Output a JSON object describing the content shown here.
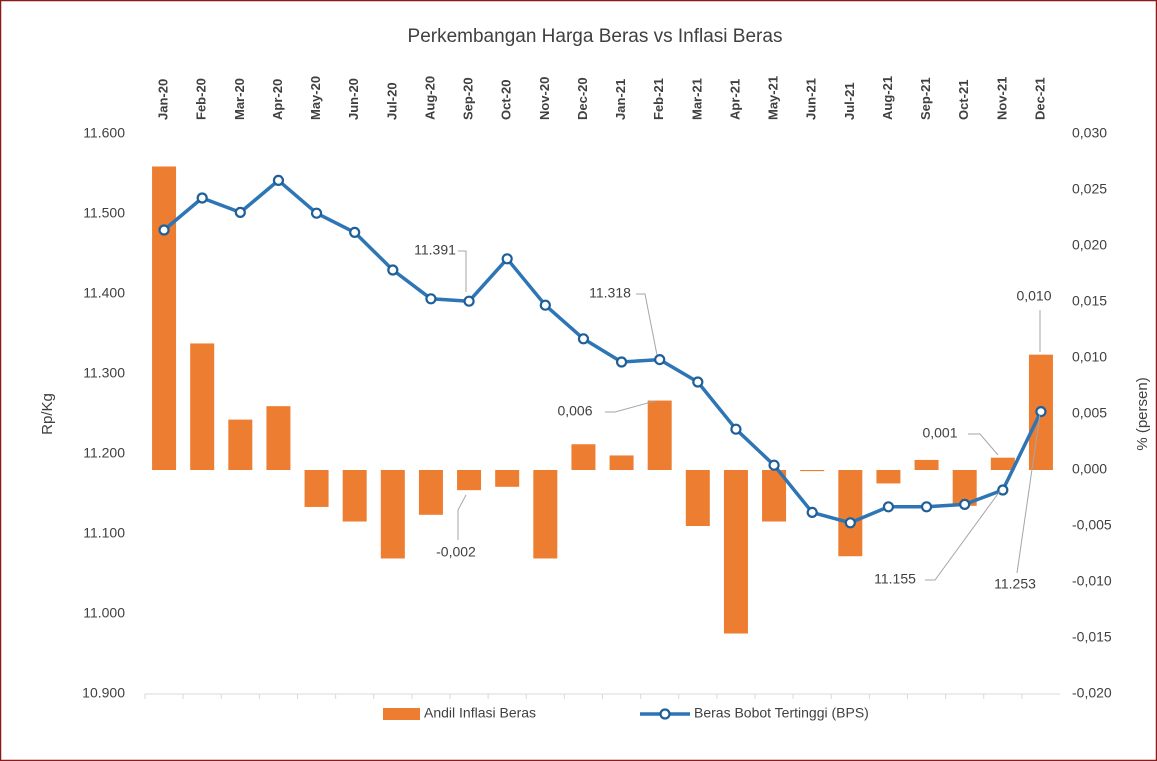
{
  "chart_data": {
    "type": "bar_line",
    "title": "Perkembangan Harga Beras vs Inflasi Beras",
    "y_label": "Rp/Kg",
    "y2_label": "% (persen)",
    "categories": [
      "Jan-20",
      "Feb-20",
      "Mar-20",
      "Apr-20",
      "May-20",
      "Jun-20",
      "Jul-20",
      "Aug-20",
      "Sep-20",
      "Oct-20",
      "Nov-20",
      "Dec-20",
      "Jan-21",
      "Feb-21",
      "Mar-21",
      "Apr-21",
      "May-21",
      "Jun-21",
      "Jul-21",
      "Aug-21",
      "Sep-21",
      "Oct-21",
      "Nov-21",
      "Dec-21"
    ],
    "series": [
      {
        "name": "Andil Inflasi Beras",
        "type": "bar",
        "axis": "y2",
        "color": "#ed7d31",
        "values": [
          0.0271,
          0.0113,
          0.0045,
          0.0057,
          -0.0033,
          -0.0046,
          -0.0079,
          -0.004,
          -0.0018,
          -0.0015,
          -0.0079,
          0.0023,
          0.0013,
          0.0062,
          -0.005,
          -0.0146,
          -0.0046,
          -0.0001,
          -0.0077,
          -0.0012,
          0.0009,
          -0.0032,
          0.0011,
          0.0103
        ],
        "value_labels": [
          null,
          null,
          null,
          null,
          null,
          null,
          null,
          null,
          "-0,002",
          null,
          null,
          null,
          null,
          "0,006",
          null,
          null,
          null,
          null,
          null,
          null,
          null,
          null,
          "0,001",
          "0,010"
        ]
      },
      {
        "name": "Beras Bobot Tertinggi (BPS)",
        "type": "line",
        "axis": "y",
        "color": "#2e75b6",
        "values": [
          11480,
          11520,
          11502,
          11542,
          11501,
          11477,
          11430,
          11394,
          11391,
          11444,
          11386,
          11344,
          11315,
          11318,
          11290,
          11231,
          11186,
          11127,
          11114,
          11134,
          11134,
          11137,
          11155,
          11253
        ],
        "value_labels": [
          null,
          null,
          null,
          null,
          null,
          null,
          null,
          null,
          "11.391",
          null,
          null,
          null,
          null,
          "11.318",
          null,
          null,
          null,
          null,
          null,
          null,
          null,
          null,
          "11.155",
          "11.253"
        ]
      }
    ],
    "ylim": [
      10900,
      11600
    ],
    "yticks": [
      {
        "value": 10900,
        "label": "10.900"
      },
      {
        "value": 11000,
        "label": "11.000"
      },
      {
        "value": 11100,
        "label": "11.100"
      },
      {
        "value": 11200,
        "label": "11.200"
      },
      {
        "value": 11300,
        "label": "11.300"
      },
      {
        "value": 11400,
        "label": "11.400"
      },
      {
        "value": 11500,
        "label": "11.500"
      },
      {
        "value": 11600,
        "label": "11.600"
      }
    ],
    "y2lim": [
      -0.02,
      0.03
    ],
    "y2ticks": [
      {
        "value": -0.02,
        "label": "-0,020"
      },
      {
        "value": -0.015,
        "label": "-0,015"
      },
      {
        "value": -0.01,
        "label": "-0,010"
      },
      {
        "value": -0.005,
        "label": "-0,005"
      },
      {
        "value": 0,
        "label": "0,000"
      },
      {
        "value": 0.005,
        "label": "0,005"
      },
      {
        "value": 0.01,
        "label": "0,010"
      },
      {
        "value": 0.015,
        "label": "0,015"
      },
      {
        "value": 0.02,
        "label": "0,020"
      },
      {
        "value": 0.025,
        "label": "0,025"
      },
      {
        "value": 0.03,
        "label": "0,030"
      }
    ],
    "legend": "bottom"
  }
}
